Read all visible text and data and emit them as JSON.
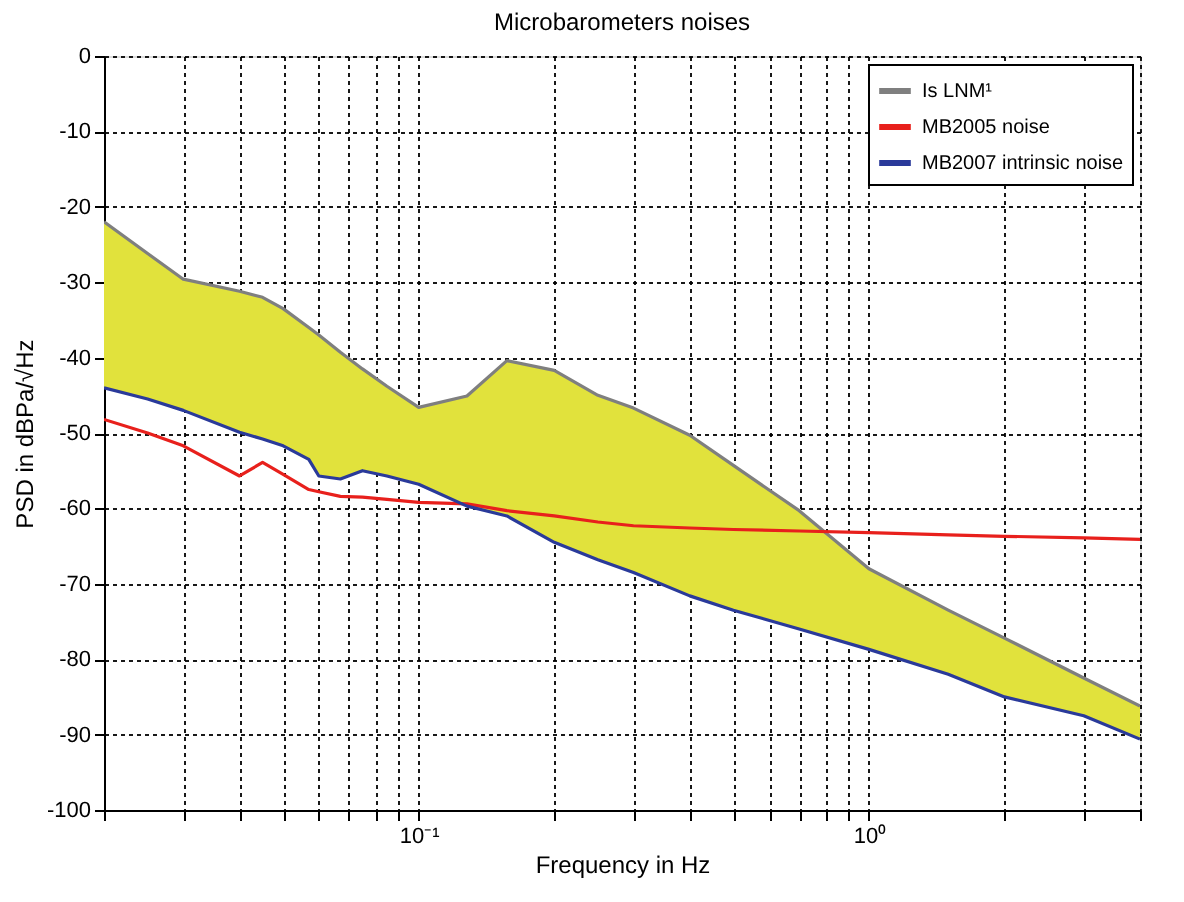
{
  "chart_data": {
    "type": "line",
    "title": "Microbarometers noises",
    "xlabel": "Frequency in Hz",
    "ylabel": "PSD in dBPa/√Hz",
    "x": [
      0.02,
      0.025,
      0.03,
      0.04,
      0.045,
      0.05,
      0.057,
      0.06,
      0.067,
      0.075,
      0.085,
      0.1,
      0.128,
      0.157,
      0.2,
      0.25,
      0.3,
      0.4,
      0.5,
      0.7,
      1,
      1.5,
      2,
      3,
      4
    ],
    "series": [
      {
        "name": "Is LNM¹",
        "color": "#7f7f7f",
        "colors": [
          "#e1e23c",
          "#e1e23c",
          "#e1e23c",
          "#e1e23c",
          "#e1e23c",
          "#e1e23c",
          "#e1e23c",
          "#e1e23c",
          "#e1e23c",
          "#e1e23c",
          "#e1e23c",
          "#e1e23c",
          "#e1e23c",
          "#e1e23c",
          "#e1e23c",
          "#e1e23c",
          "#e1e23c",
          "#e1e23c",
          "#e1e23c",
          "#e1e23c",
          "#e1e23c",
          "#e1e23c",
          "#e1e23c",
          "#e1e23c",
          "#e1e23c"
        ],
        "values": [
          -22,
          -26.2,
          -29.6,
          -31.2,
          -32,
          -33.5,
          -36,
          -37,
          -39.3,
          -41.5,
          -43.8,
          -46.6,
          -45.1,
          -40.4,
          -41.7,
          -45,
          -46.7,
          -50.3,
          -54.3,
          -60.3,
          -68,
          -73.5,
          -77.2,
          -82.5,
          -86.2
        ],
        "upper": [
          -22,
          -26.2,
          -29.6,
          -31.2,
          -32,
          -33.5,
          -36,
          -37,
          -39.3,
          -41.5,
          -43.8,
          -46.6,
          -45.1,
          -40.4,
          -41.7,
          -45,
          -46.7,
          -50.3,
          -54.3,
          -60.3,
          -68,
          -73.5,
          -77.2,
          -82.5,
          -86.2
        ],
        "lower": [
          -44,
          -45.5,
          -47,
          -49.9,
          -50.8,
          -51.7,
          -53.5,
          -55.7,
          -56.1,
          -55,
          -55.7,
          -56.8,
          -59.7,
          -61,
          -64.5,
          -66.8,
          -68.5,
          -71.6,
          -73.5,
          -76,
          -78.7,
          -82,
          -85,
          -87.5,
          -90.6
        ]
      },
      {
        "name": "MB2005 noise",
        "color": "#e8201c",
        "values": [
          -48.2,
          -50,
          -51.7,
          -55.7,
          -53.9,
          -55.5,
          -57.5,
          -57.8,
          -58.4,
          -58.5,
          -58.8,
          -59.2,
          -59.4,
          -60.3,
          -61,
          -61.8,
          -62.3,
          -62.6,
          -62.8,
          -63,
          -63.2,
          -63.5,
          -63.7,
          -63.9,
          -64.1
        ]
      },
      {
        "name": "MB2007 intrinsic noise",
        "color": "#2a3a9a",
        "values": [
          -44,
          -45.5,
          -47,
          -49.9,
          -50.8,
          -51.7,
          -53.5,
          -55.7,
          -56.1,
          -55,
          -55.7,
          -56.8,
          -59.7,
          -61,
          -64.5,
          -66.8,
          -68.5,
          -71.6,
          -73.5,
          -76,
          -78.7,
          -82,
          -85,
          -87.5,
          -90.6
        ]
      }
    ],
    "log": "x",
    "xlim": [
      0.02,
      4
    ],
    "xticks": [
      {
        "value": 0.02,
        "label": null
      },
      {
        "value": 0.03,
        "label": null
      },
      {
        "value": 0.04,
        "label": null
      },
      {
        "value": 0.05,
        "label": null
      },
      {
        "value": 0.06,
        "label": null
      },
      {
        "value": 0.07,
        "label": null
      },
      {
        "value": 0.08,
        "label": null
      },
      {
        "value": 0.09,
        "label": null
      },
      {
        "value": 0.1,
        "label": "10⁻¹"
      },
      {
        "value": 0.2,
        "label": null
      },
      {
        "value": 0.3,
        "label": null
      },
      {
        "value": 0.4,
        "label": null
      },
      {
        "value": 0.5,
        "label": null
      },
      {
        "value": 0.6,
        "label": null
      },
      {
        "value": 0.7,
        "label": null
      },
      {
        "value": 0.8,
        "label": null
      },
      {
        "value": 0.9,
        "label": null
      },
      {
        "value": 1,
        "label": "10⁰"
      },
      {
        "value": 2,
        "label": null
      },
      {
        "value": 3,
        "label": null
      },
      {
        "value": 4,
        "label": null
      }
    ],
    "ylim": [
      -100,
      0
    ],
    "yticks": [
      -100,
      -90,
      -80,
      -70,
      -60,
      -50,
      -40,
      -30,
      -20,
      -10,
      0
    ],
    "grid": true,
    "legend": "top right",
    "marker": "none",
    "line_style": "solid"
  }
}
